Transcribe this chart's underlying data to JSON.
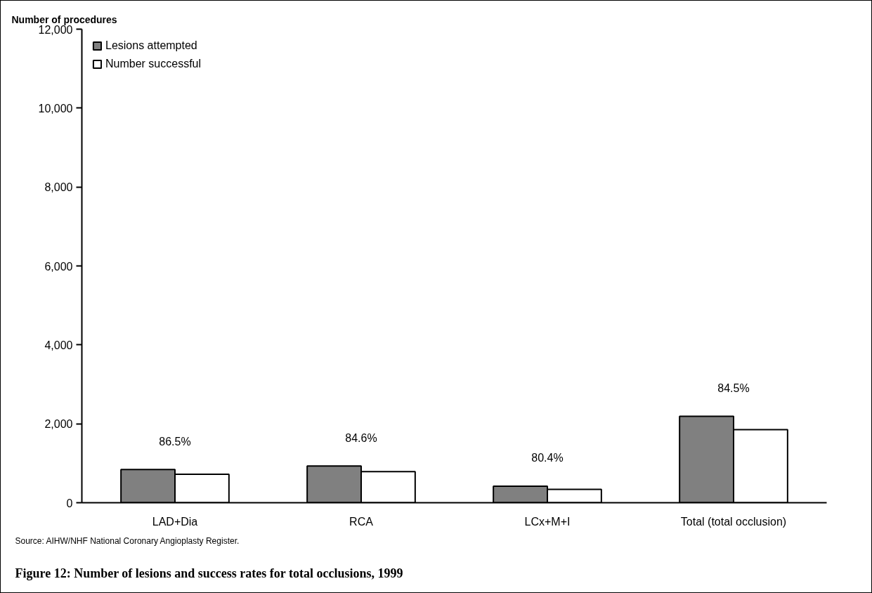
{
  "chart_data": {
    "type": "bar",
    "title": "Figure 12: Number of lesions and success rates for total occlusions, 1999",
    "ylabel": "Number of procedures",
    "categories": [
      "LAD+Dia",
      "RCA",
      "LCx+M+I",
      "Total (total occlusion)"
    ],
    "series": [
      {
        "name": "Lesions attempted",
        "color": "#808080",
        "values": [
          840,
          930,
          420,
          2190
        ]
      },
      {
        "name": "Number successful",
        "color": "#ffffff",
        "values": [
          720,
          790,
          340,
          1850
        ]
      }
    ],
    "ylim": [
      0,
      12000
    ],
    "yticks": [
      {
        "value": 0,
        "label": "0"
      },
      {
        "value": 2000,
        "label": "2,000"
      },
      {
        "value": 4000,
        "label": "4,000"
      },
      {
        "value": 6000,
        "label": "6,000"
      },
      {
        "value": 8000,
        "label": "8,000"
      },
      {
        "value": 10000,
        "label": "10,000"
      },
      {
        "value": 12000,
        "label": "12,000"
      }
    ],
    "annotations": [
      "86.5%",
      "84.6%",
      "80.4%",
      "84.5%",
      "Source: AIHW/NHF National Coronary Angioplasty Register."
    ],
    "grid": false,
    "legend": "top left"
  }
}
